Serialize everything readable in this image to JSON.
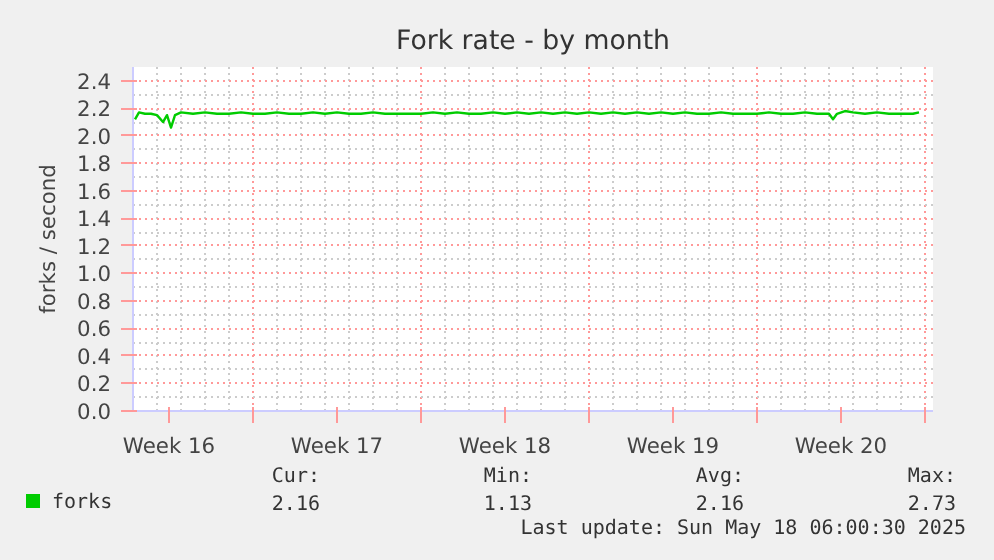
{
  "chart_data": {
    "type": "line",
    "title": "Fork rate - by month",
    "ylabel": "forks / second",
    "series": [
      {
        "name": "forks",
        "color": "#00cc00",
        "x": [
          "2025-04-16T02:00",
          "2025-04-16T06:00",
          "2025-04-16T12:00",
          "2025-04-16T18:00",
          "2025-04-17T00:00",
          "2025-04-17T06:00",
          "2025-04-17T10:00",
          "2025-04-17T14:00",
          "2025-04-17T18:00",
          "2025-04-18T00:00",
          "2025-04-18T12:00",
          "2025-04-19T00:00",
          "2025-04-19T12:00",
          "2025-04-20T00:00",
          "2025-04-20T12:00",
          "2025-04-21T00:00",
          "2025-04-21T12:00",
          "2025-04-22T00:00",
          "2025-04-22T12:00",
          "2025-04-23T00:00",
          "2025-04-23T12:00",
          "2025-04-24T00:00",
          "2025-04-24T12:00",
          "2025-04-25T00:00",
          "2025-04-25T12:00",
          "2025-04-26T00:00",
          "2025-04-26T12:00",
          "2025-04-27T00:00",
          "2025-04-27T12:00",
          "2025-04-28T00:00",
          "2025-04-28T12:00",
          "2025-04-29T00:00",
          "2025-04-29T12:00",
          "2025-04-30T00:00",
          "2025-04-30T12:00",
          "2025-05-01T00:00",
          "2025-05-01T12:00",
          "2025-05-02T00:00",
          "2025-05-02T12:00",
          "2025-05-03T00:00",
          "2025-05-03T12:00",
          "2025-05-04T00:00",
          "2025-05-04T12:00",
          "2025-05-05T00:00",
          "2025-05-05T12:00",
          "2025-05-06T00:00",
          "2025-05-06T12:00",
          "2025-05-07T00:00",
          "2025-05-07T12:00",
          "2025-05-08T00:00",
          "2025-05-08T12:00",
          "2025-05-09T00:00",
          "2025-05-09T12:00",
          "2025-05-10T00:00",
          "2025-05-10T12:00",
          "2025-05-11T00:00",
          "2025-05-11T12:00",
          "2025-05-12T00:00",
          "2025-05-12T12:00",
          "2025-05-13T00:00",
          "2025-05-13T12:00",
          "2025-05-14T00:00",
          "2025-05-14T12:00",
          "2025-05-15T00:00",
          "2025-05-15T04:00",
          "2025-05-15T08:00",
          "2025-05-15T16:00",
          "2025-05-16T00:00",
          "2025-05-16T12:00",
          "2025-05-17T00:00",
          "2025-05-17T12:00",
          "2025-05-18T00:00",
          "2025-05-18T12:00",
          "2025-05-18T18:00"
        ],
        "values": [
          2.12,
          2.17,
          2.16,
          2.16,
          2.15,
          2.1,
          2.15,
          2.06,
          2.15,
          2.17,
          2.16,
          2.17,
          2.16,
          2.16,
          2.17,
          2.16,
          2.16,
          2.17,
          2.16,
          2.16,
          2.17,
          2.16,
          2.17,
          2.16,
          2.16,
          2.17,
          2.16,
          2.16,
          2.16,
          2.16,
          2.17,
          2.16,
          2.17,
          2.16,
          2.16,
          2.17,
          2.16,
          2.17,
          2.16,
          2.17,
          2.16,
          2.17,
          2.16,
          2.17,
          2.16,
          2.17,
          2.16,
          2.17,
          2.16,
          2.17,
          2.16,
          2.17,
          2.16,
          2.16,
          2.17,
          2.16,
          2.16,
          2.16,
          2.17,
          2.16,
          2.16,
          2.17,
          2.16,
          2.16,
          2.12,
          2.16,
          2.18,
          2.17,
          2.16,
          2.17,
          2.16,
          2.16,
          2.16,
          2.17
        ]
      }
    ],
    "xlim": [
      "2025-04-16T00:00",
      "2025-05-19T08:00"
    ],
    "xticks": [
      {
        "value": "2025-04-17T12:00",
        "label": "Week 16"
      },
      {
        "value": "2025-04-21T00:00",
        "label": null
      },
      {
        "value": "2025-04-24T12:00",
        "label": "Week 17"
      },
      {
        "value": "2025-04-28T00:00",
        "label": null
      },
      {
        "value": "2025-05-01T12:00",
        "label": "Week 18"
      },
      {
        "value": "2025-05-05T00:00",
        "label": null
      },
      {
        "value": "2025-05-08T12:00",
        "label": "Week 19"
      },
      {
        "value": "2025-05-12T00:00",
        "label": null
      },
      {
        "value": "2025-05-15T12:00",
        "label": "Week 20"
      },
      {
        "value": "2025-05-19T00:00",
        "label": null
      }
    ],
    "ylim": [
      0,
      2.5
    ],
    "yticks": [
      {
        "value": 0,
        "label": "0.0"
      },
      0.2,
      0.4,
      0.6,
      0.8,
      {
        "value": 1,
        "label": "1.0"
      },
      1.2,
      1.4,
      1.6,
      1.8,
      {
        "value": 2,
        "label": "2.0"
      },
      2.2,
      2.4
    ],
    "grid": true,
    "legend": "bottom",
    "marker": "none",
    "line_style": "solid",
    "annotations": [
      "Cur:",
      "2.16",
      "Min:",
      "1.13",
      "Avg:",
      "2.16",
      "Max:",
      "2.73",
      "Last update: Sun May 18 06:00:30 2025"
    ]
  }
}
